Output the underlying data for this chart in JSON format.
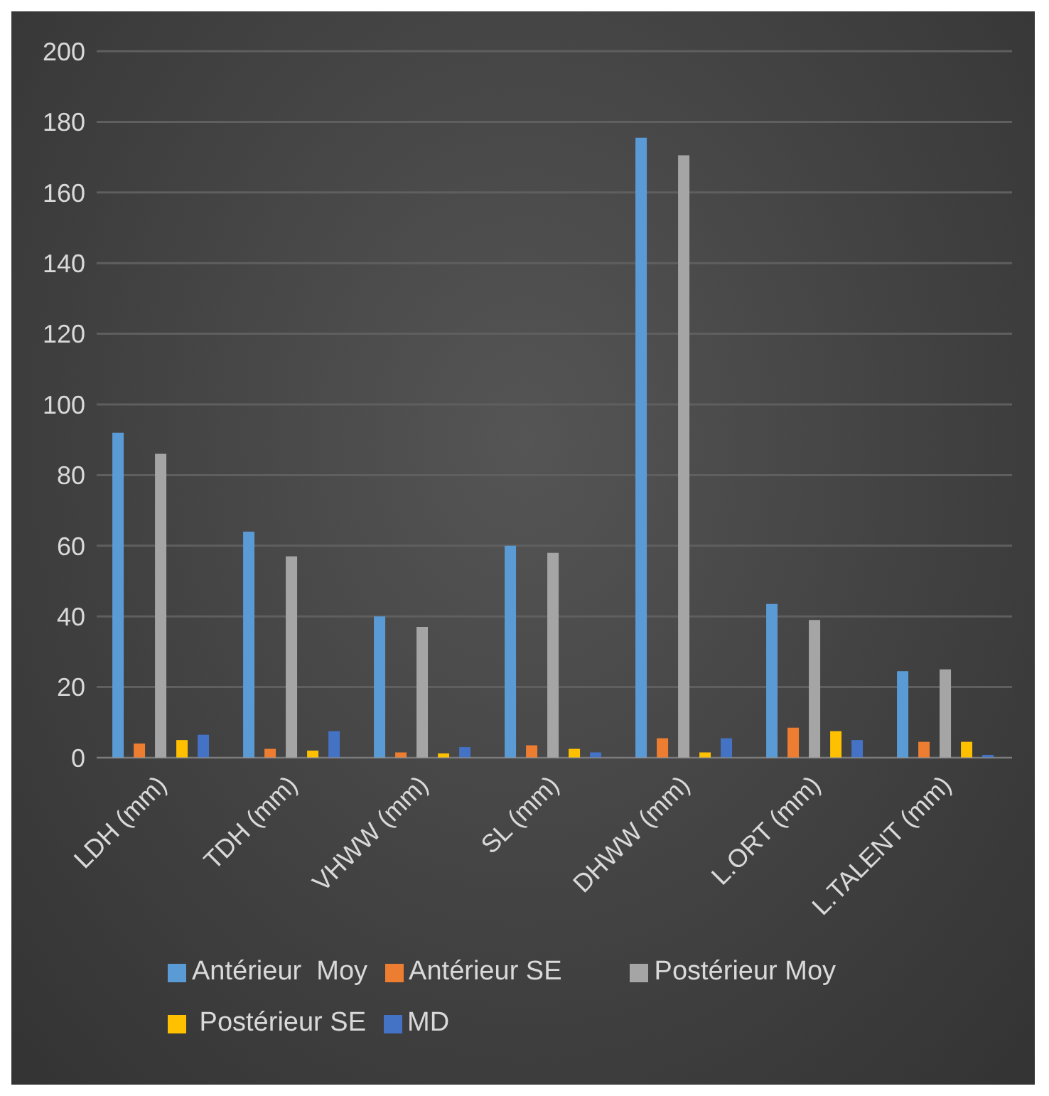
{
  "chart_data": {
    "type": "bar",
    "categories": [
      "LDH (mm)",
      "TDH (mm)",
      "VHWW (mm)",
      "SL (mm)",
      "DHWW (mm)",
      "L.ORT (mm)",
      "L.TALENT (mm)"
    ],
    "series": [
      {
        "name": "Antérieur  Moy",
        "color": "#5b9bd5",
        "values": [
          92,
          64,
          40,
          60,
          175.5,
          43.5,
          24.5
        ]
      },
      {
        "name": "Antérieur SE",
        "color": "#ed7d31",
        "values": [
          4,
          2.5,
          1.5,
          3.5,
          5.5,
          8.5,
          4.5
        ]
      },
      {
        "name": "Postérieur Moy",
        "color": "#a5a5a5",
        "values": [
          86,
          57,
          37,
          58,
          170.5,
          39,
          25
        ]
      },
      {
        "name": " Postérieur SE",
        "color": "#ffc000",
        "values": [
          5,
          2,
          1.2,
          2.5,
          1.5,
          7.5,
          4.5
        ]
      },
      {
        "name": "MD",
        "color": "#4472c4",
        "values": [
          6.5,
          7.5,
          3,
          1.5,
          5.5,
          5,
          0.8
        ]
      }
    ],
    "ylim": [
      0,
      200
    ],
    "yticks": [
      0,
      20,
      40,
      60,
      80,
      100,
      120,
      140,
      160,
      180,
      200
    ],
    "grid": "y",
    "legend": "bottom"
  }
}
